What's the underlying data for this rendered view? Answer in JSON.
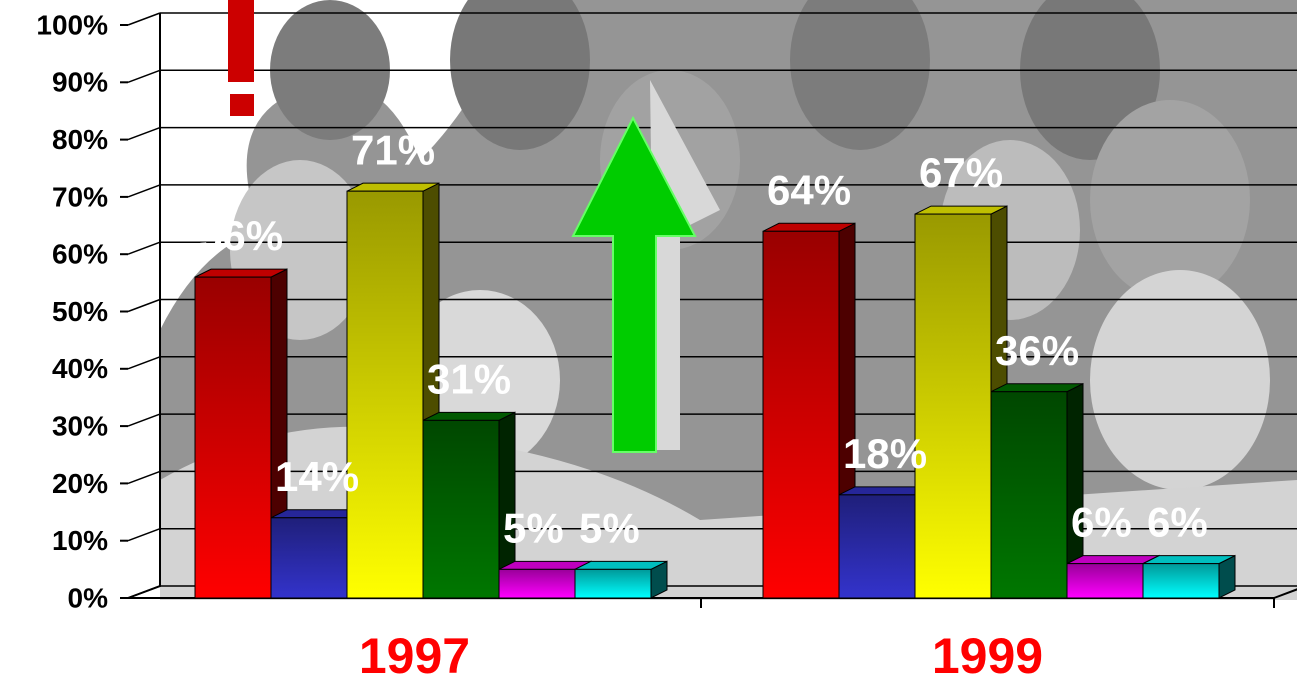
{
  "chart_data": {
    "type": "bar3d",
    "categories": [
      "1997",
      "1999"
    ],
    "series": [
      {
        "color": "#ff0000",
        "values": [
          56,
          64
        ],
        "value_labels": [
          "56%",
          "64%"
        ]
      },
      {
        "color": "#3333cc",
        "values": [
          14,
          18
        ],
        "value_labels": [
          "14%",
          "18%"
        ]
      },
      {
        "color": "#ffff00",
        "values": [
          71,
          67
        ],
        "value_labels": [
          "71%",
          "67%"
        ]
      },
      {
        "color": "#007700",
        "values": [
          31,
          36
        ],
        "value_labels": [
          "31%",
          "36%"
        ]
      },
      {
        "color": "#ff00ff",
        "values": [
          5,
          6
        ],
        "value_labels": [
          "5%",
          "6%"
        ]
      },
      {
        "color": "#00ffff",
        "values": [
          5,
          6
        ],
        "value_labels": [
          "5%",
          "6%"
        ]
      }
    ],
    "ylim": [
      0,
      100
    ],
    "yticks": [
      {
        "value": 0,
        "label": "0%"
      },
      {
        "value": 10,
        "label": "10%"
      },
      {
        "value": 20,
        "label": "20%"
      },
      {
        "value": 30,
        "label": "30%"
      },
      {
        "value": 40,
        "label": "40%"
      },
      {
        "value": 50,
        "label": "50%"
      },
      {
        "value": 60,
        "label": "60%"
      },
      {
        "value": 70,
        "label": "70%"
      },
      {
        "value": 80,
        "label": "80%"
      },
      {
        "value": 90,
        "label": "90%"
      },
      {
        "value": 100,
        "label": "100%"
      }
    ],
    "grid": true
  }
}
